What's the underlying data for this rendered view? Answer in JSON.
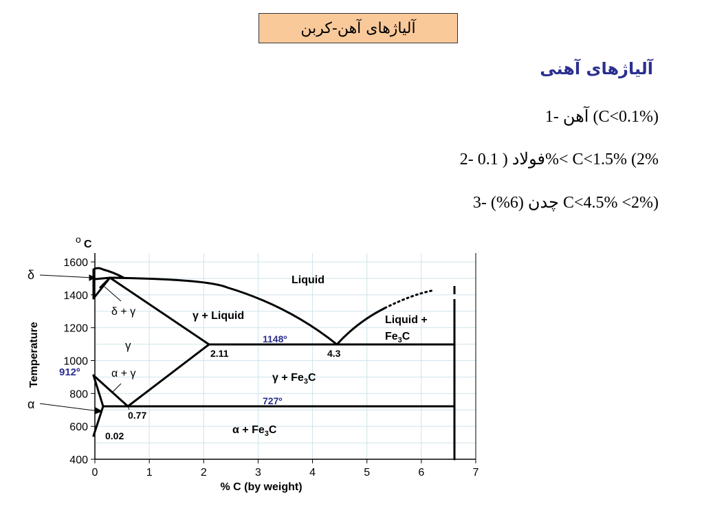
{
  "slide": {
    "title": "آلیاژهای آهن-کربن",
    "subtitle": "آلیاژهای آهنی",
    "items": [
      "1- آهن (C<0.1%)",
      "2- فولاد ( 0.1%< C<1.5% (2%",
      "3- چدن (6%) C<4.5% <2%)"
    ]
  },
  "diagram": {
    "unit": "C",
    "ylabel": "Temperature",
    "xlabel": "% C (by weight)",
    "x_ticks": [
      "0",
      "1",
      "2",
      "3",
      "4",
      "5",
      "6",
      "7"
    ],
    "y_ticks": [
      "1600",
      "1400",
      "1200",
      "1000",
      "800",
      "600",
      "400"
    ],
    "x_range": [
      0,
      7
    ],
    "y_range": [
      400,
      1600
    ],
    "point_912": "912º",
    "label_1148": "1148º",
    "label_727": "727º",
    "phase_delta": "δ",
    "phase_alpha": "α",
    "region_liquid": "Liquid",
    "region_delta_gamma": "δ + γ",
    "region_gamma_liquid": "γ + Liquid",
    "region_liquid_fe3c_1": "Liquid +",
    "region_liquid_fe3c_2": "Fe",
    "region_gamma": "γ",
    "region_alpha_gamma": "α + γ",
    "region_gamma_fe3c": "γ + Fe",
    "region_alpha_fe3c": "α + Fe",
    "sub_3": "3",
    "sub_c": "C",
    "val_211": "2.11",
    "val_43": "4.3",
    "val_077": "0.77",
    "val_002": "0.02",
    "label_color": "#2b2f8f"
  }
}
